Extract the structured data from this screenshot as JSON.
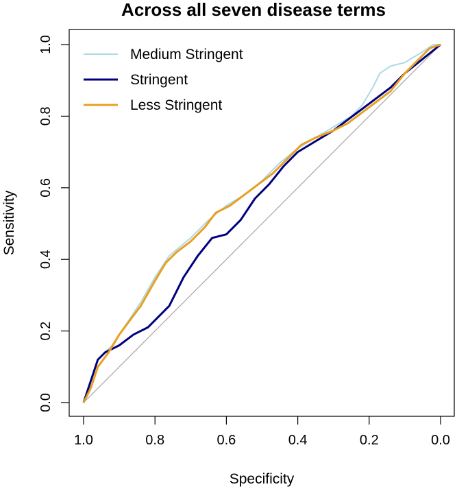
{
  "chart_data": {
    "type": "line",
    "title": "Across all seven disease terms",
    "xlabel": "Specificity",
    "ylabel": "Sensitivity",
    "x_reversed": true,
    "xlim": [
      1.0,
      0.0
    ],
    "ylim": [
      0.0,
      1.0
    ],
    "xticks": [
      "1.0",
      "0.8",
      "0.6",
      "0.4",
      "0.2",
      "0.0"
    ],
    "yticks": [
      "0.0",
      "0.2",
      "0.4",
      "0.6",
      "0.8",
      "1.0"
    ],
    "xtick_values": [
      1.0,
      0.8,
      0.6,
      0.4,
      0.2,
      0.0
    ],
    "ytick_values": [
      0.0,
      0.2,
      0.4,
      0.6,
      0.8,
      1.0
    ],
    "reference_line": {
      "from": [
        1.0,
        0.0
      ],
      "to": [
        0.0,
        1.0
      ],
      "color": "#aaaaaa"
    },
    "legend_position": "top-left",
    "series": [
      {
        "name": "Medium Stringent",
        "color": "#add8e6",
        "points": [
          [
            1.0,
            0.0
          ],
          [
            0.98,
            0.06
          ],
          [
            0.96,
            0.12
          ],
          [
            0.92,
            0.16
          ],
          [
            0.88,
            0.22
          ],
          [
            0.84,
            0.28
          ],
          [
            0.8,
            0.35
          ],
          [
            0.76,
            0.41
          ],
          [
            0.7,
            0.46
          ],
          [
            0.65,
            0.51
          ],
          [
            0.6,
            0.55
          ],
          [
            0.55,
            0.58
          ],
          [
            0.5,
            0.62
          ],
          [
            0.45,
            0.67
          ],
          [
            0.4,
            0.71
          ],
          [
            0.35,
            0.74
          ],
          [
            0.3,
            0.77
          ],
          [
            0.25,
            0.8
          ],
          [
            0.22,
            0.83
          ],
          [
            0.19,
            0.88
          ],
          [
            0.17,
            0.92
          ],
          [
            0.14,
            0.94
          ],
          [
            0.1,
            0.95
          ],
          [
            0.05,
            0.98
          ],
          [
            0.02,
            1.0
          ],
          [
            0.0,
            1.0
          ]
        ]
      },
      {
        "name": "Stringent",
        "color": "#000080",
        "points": [
          [
            1.0,
            0.0
          ],
          [
            0.98,
            0.06
          ],
          [
            0.96,
            0.12
          ],
          [
            0.94,
            0.14
          ],
          [
            0.9,
            0.16
          ],
          [
            0.86,
            0.19
          ],
          [
            0.82,
            0.21
          ],
          [
            0.8,
            0.23
          ],
          [
            0.76,
            0.27
          ],
          [
            0.72,
            0.35
          ],
          [
            0.68,
            0.41
          ],
          [
            0.64,
            0.46
          ],
          [
            0.6,
            0.47
          ],
          [
            0.56,
            0.51
          ],
          [
            0.52,
            0.57
          ],
          [
            0.48,
            0.61
          ],
          [
            0.44,
            0.66
          ],
          [
            0.4,
            0.7
          ],
          [
            0.35,
            0.73
          ],
          [
            0.3,
            0.76
          ],
          [
            0.26,
            0.79
          ],
          [
            0.22,
            0.82
          ],
          [
            0.18,
            0.85
          ],
          [
            0.14,
            0.88
          ],
          [
            0.1,
            0.92
          ],
          [
            0.05,
            0.96
          ],
          [
            0.0,
            1.0
          ]
        ]
      },
      {
        "name": "Less Stringent",
        "color": "#e8a020",
        "points": [
          [
            1.0,
            0.0
          ],
          [
            0.98,
            0.04
          ],
          [
            0.96,
            0.1
          ],
          [
            0.93,
            0.14
          ],
          [
            0.9,
            0.19
          ],
          [
            0.87,
            0.23
          ],
          [
            0.84,
            0.27
          ],
          [
            0.8,
            0.34
          ],
          [
            0.77,
            0.39
          ],
          [
            0.74,
            0.42
          ],
          [
            0.7,
            0.45
          ],
          [
            0.66,
            0.49
          ],
          [
            0.63,
            0.53
          ],
          [
            0.59,
            0.55
          ],
          [
            0.55,
            0.58
          ],
          [
            0.51,
            0.61
          ],
          [
            0.47,
            0.64
          ],
          [
            0.43,
            0.68
          ],
          [
            0.39,
            0.72
          ],
          [
            0.35,
            0.74
          ],
          [
            0.3,
            0.76
          ],
          [
            0.26,
            0.78
          ],
          [
            0.22,
            0.81
          ],
          [
            0.18,
            0.84
          ],
          [
            0.14,
            0.87
          ],
          [
            0.1,
            0.92
          ],
          [
            0.06,
            0.96
          ],
          [
            0.03,
            0.99
          ],
          [
            0.0,
            1.0
          ]
        ]
      }
    ]
  }
}
